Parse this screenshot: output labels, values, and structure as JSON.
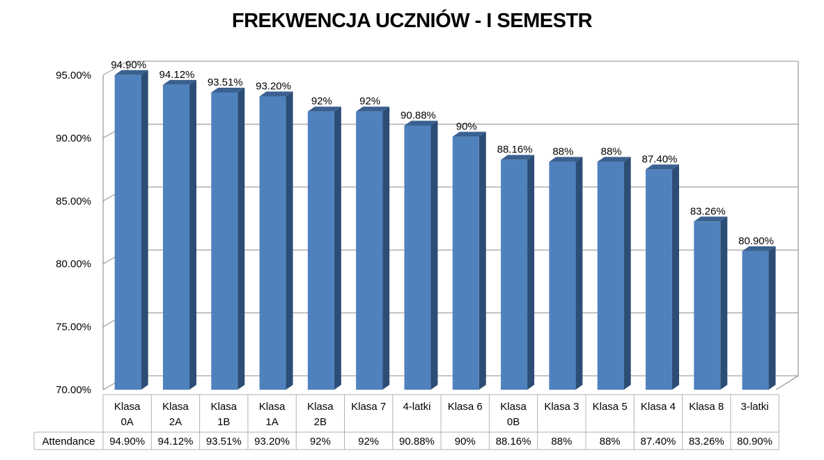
{
  "chart_data": {
    "type": "bar",
    "title": "FREKWENCJA UCZNIÓW - I SEMESTR",
    "categories": [
      "Klasa 0A",
      "Klasa 2A",
      "Klasa 1B",
      "Klasa 1A",
      "Klasa 2B",
      "Klasa 7",
      "4-latki",
      "Klasa 6",
      "Klasa 0B",
      "Klasa 3",
      "Klasa 5",
      "Klasa 4",
      "Klasa 8",
      "3-latki"
    ],
    "category_lines": [
      [
        "Klasa",
        "0A"
      ],
      [
        "Klasa",
        "2A"
      ],
      [
        "Klasa",
        "1B"
      ],
      [
        "Klasa",
        "1A"
      ],
      [
        "Klasa",
        "2B"
      ],
      [
        "Klasa 7"
      ],
      [
        "4-latki"
      ],
      [
        "Klasa 6"
      ],
      [
        "Klasa",
        "0B"
      ],
      [
        "Klasa 3"
      ],
      [
        "Klasa 5"
      ],
      [
        "Klasa 4"
      ],
      [
        "Klasa 8"
      ],
      [
        "3-latki"
      ]
    ],
    "series": [
      {
        "name": "Attendance",
        "values": [
          94.9,
          94.12,
          93.51,
          93.2,
          92,
          92,
          90.88,
          90,
          88.16,
          88,
          88,
          87.4,
          83.26,
          80.9
        ],
        "labels": [
          "94.90%",
          "94.12%",
          "93.51%",
          "93.20%",
          "92%",
          "92%",
          "90.88%",
          "90%",
          "88.16%",
          "88%",
          "88%",
          "87.40%",
          "83.26%",
          "80.90%"
        ]
      }
    ],
    "ylim": [
      70,
      95
    ],
    "yticks": [
      "70.00%",
      "75.00%",
      "80.00%",
      "85.00%",
      "90.00%",
      "95.00%"
    ],
    "xlabel": "",
    "ylabel": "",
    "grid": true,
    "style_3d": true,
    "data_table": true,
    "colors": {
      "bar_front": "#4f81bd",
      "bar_side": "#2c4d75",
      "bar_top": "#3a6190",
      "grid": "#8c8c8c",
      "wall_edge": "#7f7f7f"
    }
  }
}
